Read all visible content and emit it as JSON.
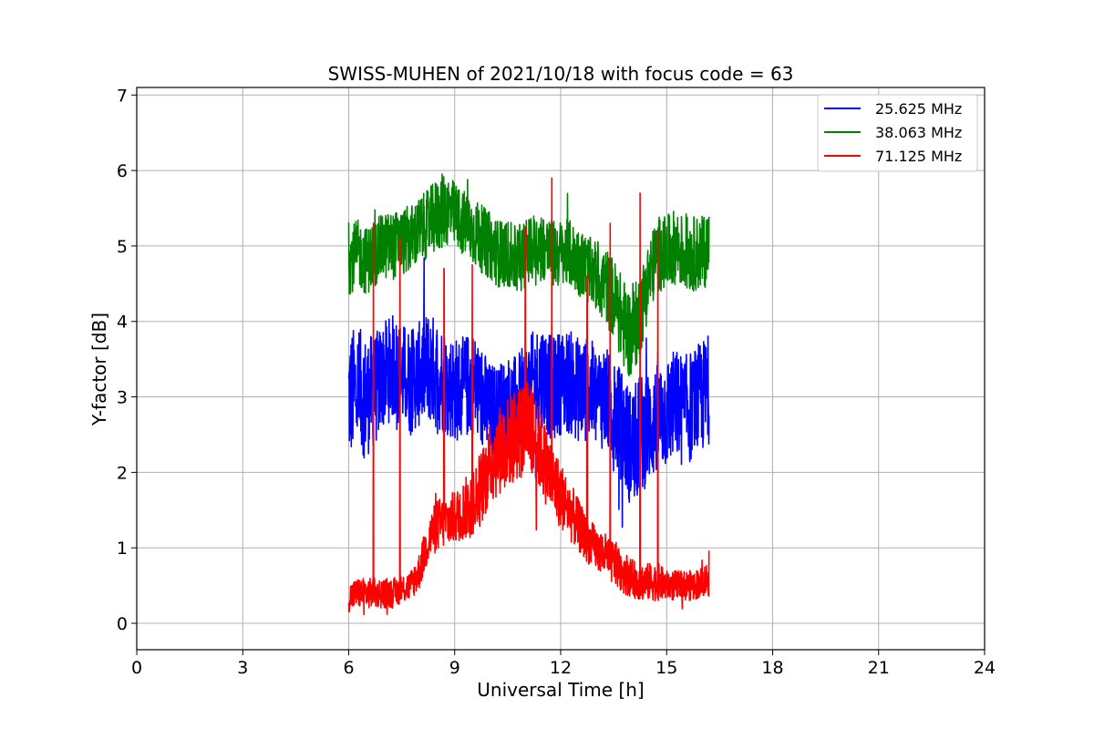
{
  "chart_data": {
    "type": "line",
    "title": "SWISS-MUHEN of 2021/10/18 with focus code = 63",
    "xlabel": "Universal Time [h]",
    "ylabel": "Y-factor [dB]",
    "xlim": [
      0,
      24
    ],
    "ylim": [
      -0.35,
      7.1
    ],
    "xticks": [
      0,
      3,
      6,
      9,
      12,
      15,
      18,
      21,
      24
    ],
    "yticks": [
      0,
      1,
      2,
      3,
      4,
      5,
      6,
      7
    ],
    "grid": true,
    "legend_position": "top-right",
    "series": [
      {
        "name": "25.625 MHz",
        "color": "#0000ff",
        "x": [
          6.0,
          6.25,
          6.5,
          6.75,
          7.0,
          7.25,
          7.5,
          7.75,
          8.0,
          8.25,
          8.5,
          8.75,
          9.0,
          9.25,
          9.5,
          9.75,
          10.0,
          10.25,
          10.5,
          10.75,
          11.0,
          11.25,
          11.5,
          11.75,
          12.0,
          12.25,
          12.5,
          12.75,
          13.0,
          13.25,
          13.5,
          13.75,
          14.0,
          14.25,
          14.5,
          14.75,
          15.0,
          15.25,
          15.5,
          15.75,
          16.0,
          16.2
        ],
        "y_center": [
          3.0,
          3.1,
          3.0,
          3.1,
          3.3,
          3.4,
          3.3,
          3.2,
          3.3,
          3.4,
          3.3,
          3.2,
          3.1,
          3.1,
          3.2,
          3.0,
          2.8,
          2.8,
          2.9,
          2.9,
          3.0,
          3.2,
          3.3,
          3.1,
          3.2,
          3.2,
          3.1,
          3.1,
          3.0,
          3.0,
          2.8,
          2.6,
          2.3,
          2.5,
          2.6,
          2.7,
          2.8,
          2.9,
          2.8,
          2.9,
          3.0,
          3.1
        ],
        "y_spread": [
          0.9,
          0.85,
          0.8,
          0.75,
          0.7,
          0.7,
          0.7,
          0.7,
          0.7,
          0.75,
          0.75,
          0.7,
          0.7,
          0.7,
          0.7,
          0.7,
          0.65,
          0.65,
          0.65,
          0.65,
          0.7,
          0.7,
          0.7,
          0.7,
          0.7,
          0.7,
          0.7,
          0.7,
          0.7,
          0.7,
          0.7,
          0.75,
          0.8,
          0.8,
          0.75,
          0.75,
          0.75,
          0.75,
          0.75,
          0.75,
          0.75,
          0.75
        ]
      },
      {
        "name": "38.063 MHz",
        "color": "#008000",
        "x": [
          6.0,
          6.25,
          6.5,
          6.75,
          7.0,
          7.25,
          7.5,
          7.75,
          8.0,
          8.25,
          8.5,
          8.75,
          9.0,
          9.25,
          9.5,
          9.75,
          10.0,
          10.25,
          10.5,
          10.75,
          11.0,
          11.25,
          11.5,
          11.75,
          12.0,
          12.25,
          12.5,
          12.75,
          13.0,
          13.25,
          13.5,
          13.75,
          14.0,
          14.25,
          14.5,
          14.75,
          15.0,
          15.25,
          15.5,
          15.75,
          16.0,
          16.2
        ],
        "y_center": [
          4.8,
          4.9,
          4.8,
          4.9,
          5.0,
          5.0,
          5.05,
          5.1,
          5.2,
          5.3,
          5.4,
          5.5,
          5.4,
          5.3,
          5.2,
          5.1,
          5.0,
          4.9,
          4.9,
          4.8,
          4.9,
          5.0,
          5.0,
          4.9,
          4.9,
          4.9,
          4.8,
          4.7,
          4.6,
          4.5,
          4.3,
          4.0,
          3.8,
          4.1,
          4.6,
          4.9,
          4.9,
          5.0,
          4.9,
          4.9,
          4.9,
          5.0
        ],
        "y_spread": [
          0.45,
          0.45,
          0.45,
          0.45,
          0.45,
          0.45,
          0.45,
          0.45,
          0.45,
          0.45,
          0.5,
          0.5,
          0.45,
          0.45,
          0.45,
          0.45,
          0.45,
          0.45,
          0.45,
          0.45,
          0.45,
          0.45,
          0.45,
          0.45,
          0.45,
          0.45,
          0.45,
          0.45,
          0.45,
          0.5,
          0.55,
          0.6,
          0.6,
          0.55,
          0.5,
          0.5,
          0.5,
          0.5,
          0.5,
          0.5,
          0.5,
          0.5
        ]
      },
      {
        "name": "71.125 MHz",
        "color": "#ff0000",
        "x": [
          6.0,
          6.25,
          6.5,
          6.75,
          7.0,
          7.25,
          7.5,
          7.75,
          8.0,
          8.25,
          8.5,
          8.75,
          9.0,
          9.25,
          9.5,
          9.75,
          10.0,
          10.25,
          10.5,
          10.75,
          11.0,
          11.25,
          11.5,
          11.75,
          12.0,
          12.25,
          12.5,
          12.75,
          13.0,
          13.25,
          13.5,
          13.75,
          14.0,
          14.25,
          14.5,
          14.75,
          15.0,
          15.25,
          15.5,
          15.75,
          16.0,
          16.2
        ],
        "y_center": [
          0.35,
          0.4,
          0.4,
          0.4,
          0.4,
          0.4,
          0.45,
          0.5,
          0.7,
          1.1,
          1.3,
          1.35,
          1.4,
          1.5,
          1.6,
          1.8,
          2.1,
          2.3,
          2.4,
          2.5,
          2.6,
          2.5,
          2.2,
          1.9,
          1.7,
          1.5,
          1.3,
          1.1,
          1.0,
          0.9,
          0.8,
          0.7,
          0.6,
          0.55,
          0.55,
          0.55,
          0.5,
          0.5,
          0.5,
          0.5,
          0.55,
          0.6
        ],
        "y_spread": [
          0.2,
          0.2,
          0.2,
          0.2,
          0.2,
          0.2,
          0.2,
          0.2,
          0.25,
          0.3,
          0.35,
          0.35,
          0.35,
          0.4,
          0.45,
          0.5,
          0.55,
          0.6,
          0.6,
          0.65,
          0.65,
          0.6,
          0.55,
          0.5,
          0.45,
          0.4,
          0.35,
          0.3,
          0.3,
          0.3,
          0.3,
          0.3,
          0.25,
          0.25,
          0.25,
          0.25,
          0.2,
          0.2,
          0.2,
          0.2,
          0.2,
          0.25
        ],
        "spikes": [
          {
            "x": 6.7,
            "y": 5.3
          },
          {
            "x": 7.45,
            "y": 5.1
          },
          {
            "x": 8.7,
            "y": 4.7
          },
          {
            "x": 9.5,
            "y": 4.75
          },
          {
            "x": 11.0,
            "y": 5.25
          },
          {
            "x": 11.75,
            "y": 5.9
          },
          {
            "x": 12.75,
            "y": 4.6
          },
          {
            "x": 13.4,
            "y": 5.3
          },
          {
            "x": 14.25,
            "y": 5.7
          },
          {
            "x": 14.75,
            "y": 5.2
          }
        ]
      }
    ]
  }
}
